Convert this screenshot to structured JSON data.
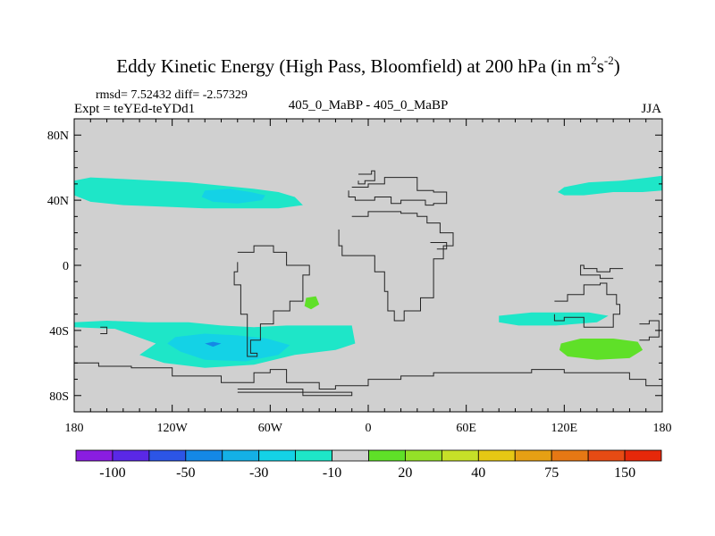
{
  "chart_data": {
    "type": "heatmap",
    "title": "Eddy Kinetic Energy (High Pass, Bloomfield) at 200 hPa (in m",
    "title_units_sup1": "2",
    "title_units_mid": "s",
    "title_units_sup2": "-2",
    "title_close": ")",
    "stats": "rmsd= 7.52432 diff= -2.57329",
    "left_label": "Expt = teYEd-teYDd1",
    "center_label": "405_0_MaBP - 405_0_MaBP",
    "right_label": "JJA",
    "x_axis": {
      "range": [
        -180,
        180
      ],
      "ticks": [
        -180,
        -120,
        -60,
        0,
        60,
        120,
        180
      ],
      "tick_labels": [
        "180",
        "120W",
        "60W",
        "0",
        "60E",
        "120E",
        "180"
      ]
    },
    "y_axis": {
      "range": [
        -90,
        90
      ],
      "ticks": [
        80,
        40,
        0,
        -40,
        -80
      ],
      "tick_labels": [
        "80N",
        "40N",
        "0",
        "40S",
        "80S"
      ]
    },
    "background_color": "#d0d0d0",
    "colorbar": {
      "colors": [
        "#8a1de0",
        "#5a28e6",
        "#2c55e6",
        "#1488e6",
        "#14b0e6",
        "#14d2e6",
        "#1ee6c8",
        "#d0d0d0",
        "#5fe028",
        "#94e028",
        "#c6e028",
        "#e6c814",
        "#e6a014",
        "#e67814",
        "#e64b14",
        "#e6280a"
      ],
      "labels": [
        "-100",
        "-50",
        "-30",
        "-10",
        "20",
        "40",
        "75",
        "150"
      ]
    },
    "regions": [
      {
        "name": "nh-pacific-atlantic-band",
        "level": "-10",
        "color": "#1ee6c8",
        "outline": [
          [
            -180,
            52
          ],
          [
            -170,
            54
          ],
          [
            -150,
            53
          ],
          [
            -130,
            52
          ],
          [
            -110,
            51
          ],
          [
            -90,
            49
          ],
          [
            -70,
            47
          ],
          [
            -55,
            45
          ],
          [
            -45,
            42
          ],
          [
            -40,
            37
          ],
          [
            -55,
            35
          ],
          [
            -75,
            35
          ],
          [
            -100,
            35
          ],
          [
            -125,
            36
          ],
          [
            -150,
            37
          ],
          [
            -170,
            39
          ],
          [
            -180,
            43
          ]
        ]
      },
      {
        "name": "nh-core",
        "level": "-30",
        "color": "#14d2e6",
        "outline": [
          [
            -100,
            46
          ],
          [
            -85,
            47
          ],
          [
            -72,
            45
          ],
          [
            -63,
            43
          ],
          [
            -65,
            40
          ],
          [
            -80,
            38
          ],
          [
            -95,
            39
          ],
          [
            -102,
            42
          ]
        ]
      },
      {
        "name": "nh-pacific-east",
        "level": "-10",
        "color": "#1ee6c8",
        "outline": [
          [
            120,
            48
          ],
          [
            135,
            51
          ],
          [
            155,
            52
          ],
          [
            172,
            54
          ],
          [
            180,
            55
          ],
          [
            180,
            46
          ],
          [
            168,
            45
          ],
          [
            150,
            45
          ],
          [
            132,
            43
          ],
          [
            120,
            43
          ],
          [
            116,
            45
          ]
        ]
      },
      {
        "name": "sh-band",
        "level": "-10",
        "color": "#1ee6c8",
        "outline": [
          [
            -180,
            -35
          ],
          [
            -160,
            -34
          ],
          [
            -135,
            -35
          ],
          [
            -110,
            -35
          ],
          [
            -90,
            -37
          ],
          [
            -70,
            -38
          ],
          [
            -50,
            -37
          ],
          [
            -30,
            -37
          ],
          [
            -10,
            -37
          ],
          [
            -8,
            -48
          ],
          [
            -20,
            -52
          ],
          [
            -45,
            -55
          ],
          [
            -70,
            -61
          ],
          [
            -100,
            -63
          ],
          [
            -125,
            -60
          ],
          [
            -140,
            -55
          ],
          [
            -130,
            -48
          ],
          [
            -155,
            -39
          ],
          [
            -180,
            -38
          ]
        ]
      },
      {
        "name": "sh-core",
        "level": "-30",
        "color": "#14d2e6",
        "outline": [
          [
            -118,
            -44
          ],
          [
            -100,
            -42
          ],
          [
            -80,
            -43
          ],
          [
            -62,
            -45
          ],
          [
            -48,
            -49
          ],
          [
            -55,
            -55
          ],
          [
            -75,
            -59
          ],
          [
            -100,
            -58
          ],
          [
            -115,
            -53
          ],
          [
            -123,
            -48
          ]
        ]
      },
      {
        "name": "sh-center",
        "level": "-50",
        "color": "#1488e6",
        "outline": [
          [
            -100,
            -48
          ],
          [
            -95,
            -47
          ],
          [
            -90,
            -48
          ],
          [
            -95,
            -50
          ]
        ]
      },
      {
        "name": "south-atlantic-green",
        "level": "20",
        "color": "#5fe028",
        "outline": [
          [
            -38,
            -20
          ],
          [
            -32,
            -19
          ],
          [
            -30,
            -24
          ],
          [
            -35,
            -27
          ],
          [
            -39,
            -25
          ]
        ]
      },
      {
        "name": "indian-ocean-band",
        "level": "-10",
        "color": "#1ee6c8",
        "outline": [
          [
            80,
            -31
          ],
          [
            100,
            -29
          ],
          [
            120,
            -29
          ],
          [
            135,
            -29
          ],
          [
            147,
            -31
          ],
          [
            140,
            -35
          ],
          [
            115,
            -37
          ],
          [
            92,
            -37
          ],
          [
            80,
            -35
          ]
        ]
      },
      {
        "name": "australia-south-green",
        "level": "20",
        "color": "#5fe028",
        "outline": [
          [
            118,
            -48
          ],
          [
            130,
            -45
          ],
          [
            150,
            -45
          ],
          [
            165,
            -47
          ],
          [
            168,
            -52
          ],
          [
            160,
            -57
          ],
          [
            140,
            -58
          ],
          [
            122,
            -56
          ],
          [
            117,
            -52
          ]
        ]
      }
    ],
    "coastlines": [
      [
        [
          -10,
          48
        ],
        [
          0,
          50
        ],
        [
          10,
          54
        ],
        [
          20,
          54
        ],
        [
          30,
          46
        ],
        [
          40,
          45
        ],
        [
          48,
          42
        ],
        [
          48,
          38
        ],
        [
          40,
          37
        ],
        [
          35,
          40
        ],
        [
          20,
          38
        ],
        [
          14,
          42
        ],
        [
          4,
          40
        ],
        [
          -8,
          42
        ],
        [
          -12,
          46
        ]
      ],
      [
        [
          -10,
          30
        ],
        [
          0,
          33
        ],
        [
          12,
          33
        ],
        [
          20,
          32
        ],
        [
          30,
          30
        ],
        [
          36,
          26
        ],
        [
          44,
          20
        ],
        [
          52,
          12
        ],
        [
          46,
          4
        ],
        [
          40,
          -8
        ],
        [
          40,
          -20
        ],
        [
          32,
          -28
        ],
        [
          22,
          -34
        ],
        [
          16,
          -28
        ],
        [
          12,
          -16
        ],
        [
          10,
          -4
        ],
        [
          4,
          6
        ],
        [
          -6,
          6
        ],
        [
          -16,
          12
        ],
        [
          -18,
          22
        ]
      ],
      [
        [
          -80,
          8
        ],
        [
          -70,
          12
        ],
        [
          -58,
          8
        ],
        [
          -50,
          0
        ],
        [
          -36,
          -6
        ],
        [
          -40,
          -22
        ],
        [
          -48,
          -28
        ],
        [
          -58,
          -36
        ],
        [
          -66,
          -46
        ],
        [
          -72,
          -54
        ],
        [
          -68,
          -56
        ],
        [
          -74,
          -46
        ],
        [
          -74,
          -30
        ],
        [
          -78,
          -12
        ],
        [
          -82,
          -4
        ],
        [
          -80,
          2
        ]
      ],
      [
        [
          114,
          -22
        ],
        [
          122,
          -18
        ],
        [
          132,
          -12
        ],
        [
          142,
          -11
        ],
        [
          146,
          -18
        ],
        [
          152,
          -24
        ],
        [
          154,
          -30
        ],
        [
          150,
          -38
        ],
        [
          140,
          -38
        ],
        [
          132,
          -32
        ],
        [
          120,
          -34
        ],
        [
          114,
          -30
        ]
      ],
      [
        [
          156,
          -2
        ],
        [
          148,
          -4
        ],
        [
          140,
          -2
        ],
        [
          132,
          0
        ],
        [
          130,
          -6
        ],
        [
          142,
          -8
        ],
        [
          150,
          -8
        ]
      ],
      [
        [
          166,
          -36
        ],
        [
          172,
          -34
        ],
        [
          178,
          -38
        ],
        [
          178,
          -44
        ],
        [
          172,
          -46
        ],
        [
          166,
          -46
        ]
      ],
      [
        [
          -164,
          -38
        ],
        [
          -160,
          -38
        ],
        [
          -160,
          -42
        ],
        [
          -164,
          -42
        ]
      ],
      [
        [
          -180,
          -60
        ],
        [
          -165,
          -62
        ],
        [
          -145,
          -63
        ],
        [
          -120,
          -68
        ],
        [
          -90,
          -72
        ],
        [
          -75,
          -72
        ],
        [
          -70,
          -66
        ],
        [
          -60,
          -64
        ],
        [
          -50,
          -72
        ],
        [
          -30,
          -76
        ],
        [
          -20,
          -74
        ],
        [
          0,
          -70
        ],
        [
          20,
          -68
        ],
        [
          40,
          -66
        ],
        [
          60,
          -66
        ],
        [
          80,
          -66
        ],
        [
          100,
          -64
        ],
        [
          120,
          -66
        ],
        [
          140,
          -66
        ],
        [
          160,
          -70
        ],
        [
          170,
          -74
        ],
        [
          180,
          -74
        ]
      ],
      [
        [
          -80,
          -78
        ],
        [
          -40,
          -80
        ],
        [
          -10,
          -78
        ],
        [
          -40,
          -76
        ],
        [
          -80,
          -76
        ]
      ],
      [
        [
          -6,
          56
        ],
        [
          2,
          58
        ],
        [
          4,
          52
        ],
        [
          -2,
          50
        ],
        [
          -6,
          52
        ]
      ],
      [
        [
          38,
          14
        ],
        [
          42,
          14
        ],
        [
          48,
          10
        ],
        [
          42,
          10
        ]
      ]
    ]
  }
}
